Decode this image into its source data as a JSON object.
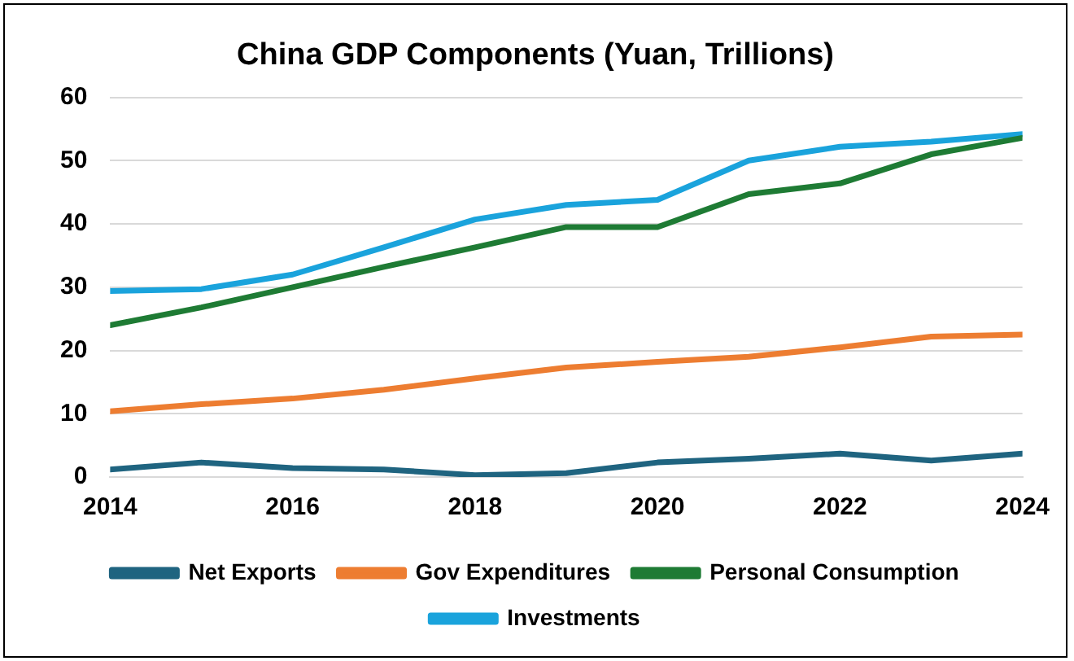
{
  "chart_data": {
    "type": "line",
    "title": "China GDP Components (Yuan, Trillions)",
    "x": [
      2014,
      2015,
      2016,
      2017,
      2018,
      2019,
      2020,
      2021,
      2022,
      2023,
      2024
    ],
    "xlim": [
      2014,
      2024
    ],
    "xticks": [
      2014,
      2016,
      2018,
      2020,
      2022,
      2024
    ],
    "ylim": [
      0,
      60
    ],
    "yticks": [
      0,
      10,
      20,
      30,
      40,
      50,
      60
    ],
    "grid": "y",
    "legend": "bottom",
    "marker": "none",
    "line_style": "solid",
    "series": [
      {
        "name": "Net Exports",
        "color": "#1f6480",
        "values": [
          1.2,
          2.3,
          1.4,
          1.2,
          0.3,
          0.6,
          2.3,
          2.9,
          3.7,
          2.6,
          3.7
        ]
      },
      {
        "name": "Gov Expenditures",
        "color": "#ed7d31",
        "values": [
          10.4,
          11.5,
          12.4,
          13.8,
          15.6,
          17.3,
          18.2,
          19,
          20.5,
          22.2,
          22.5
        ]
      },
      {
        "name": "Personal Consumption",
        "color": "#1e7b34",
        "values": [
          24,
          26.8,
          30,
          33.2,
          36.3,
          39.5,
          39.5,
          44.7,
          46.4,
          51,
          53.6
        ]
      },
      {
        "name": "Investments",
        "color": "#1aa3dc",
        "values": [
          29.4,
          29.7,
          32,
          36.3,
          40.7,
          43,
          43.8,
          50,
          52.2,
          53,
          54.2
        ]
      }
    ]
  }
}
